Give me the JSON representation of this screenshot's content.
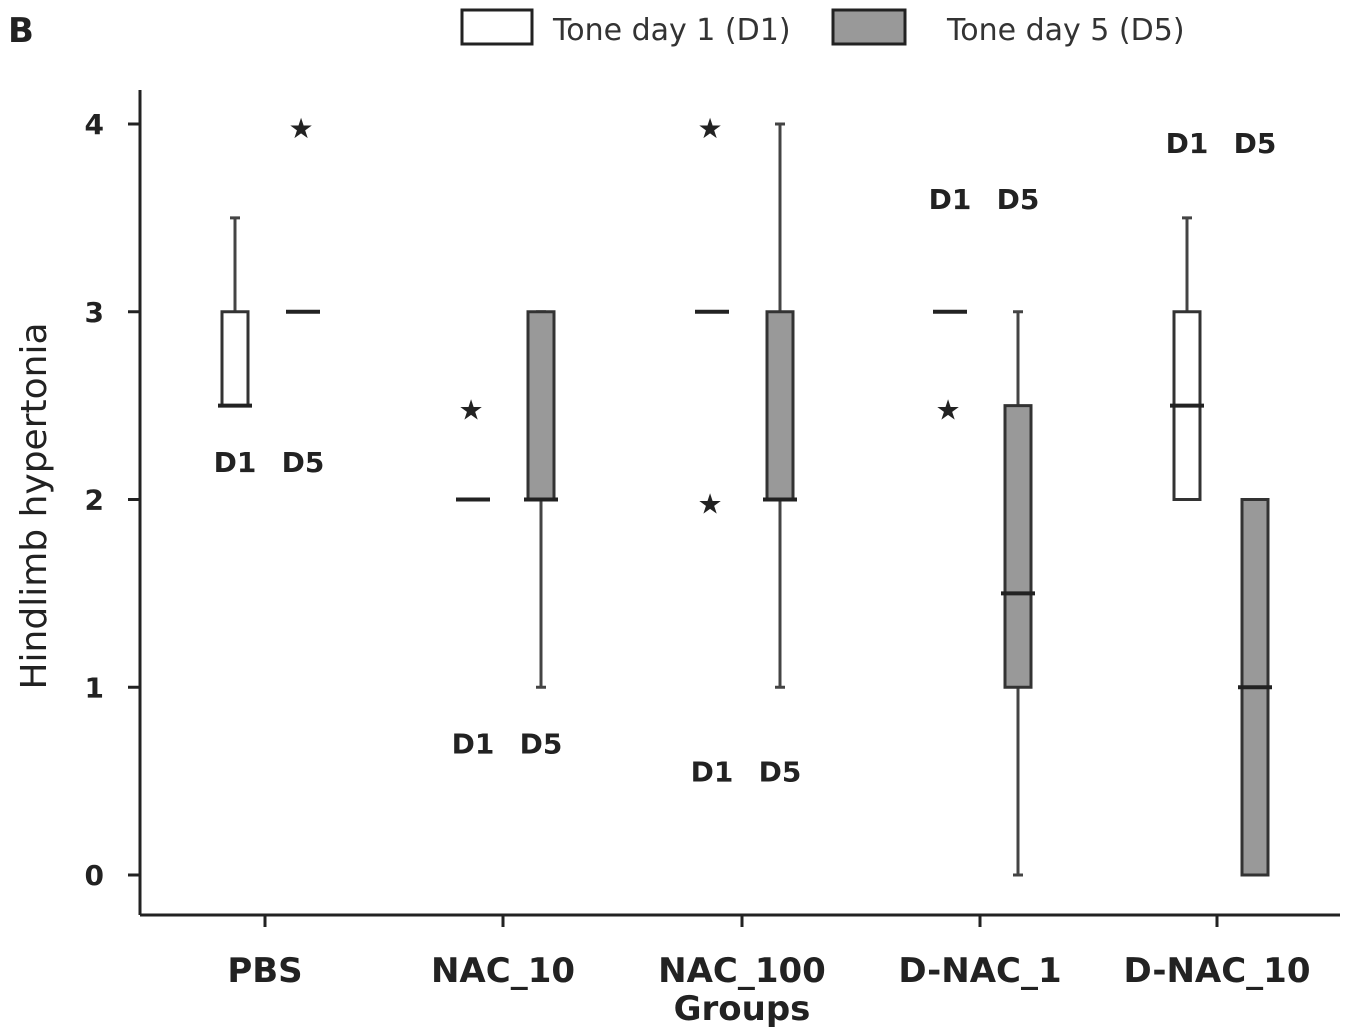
{
  "chart_data": {
    "type": "box",
    "panel_label": "B",
    "xlabel": "Groups",
    "ylabel": "Hindlimb hypertonia",
    "ylim": [
      0,
      4
    ],
    "yticks": [
      0,
      1,
      2,
      3,
      4
    ],
    "grid": false,
    "legend_position": "top",
    "categories": [
      "PBS",
      "NAC_10",
      "NAC_100",
      "D-NAC_1",
      "D-NAC_10"
    ],
    "series": [
      {
        "name": "Tone day 1 (D1)",
        "fill": "#ffffff",
        "boxes": [
          {
            "min": 2.5,
            "q1": 2.5,
            "median": 2.5,
            "q3": 3,
            "max": 3.5,
            "outliers": []
          },
          {
            "min": 2,
            "q1": 2,
            "median": 2,
            "q3": 2,
            "max": 2,
            "outliers": [
              2.5
            ]
          },
          {
            "min": 3,
            "q1": 3,
            "median": 3,
            "q3": 3,
            "max": 3,
            "outliers": [
              4,
              2
            ]
          },
          {
            "min": 3,
            "q1": 3,
            "median": 3,
            "q3": 3,
            "max": 3,
            "outliers": [
              2.5
            ]
          },
          {
            "min": 2,
            "q1": 2,
            "median": 2.5,
            "q3": 3,
            "max": 3.5,
            "outliers": []
          }
        ]
      },
      {
        "name": "Tone day 5 (D5)",
        "fill": "#999999",
        "boxes": [
          {
            "min": 3,
            "q1": 3,
            "median": 3,
            "q3": 3,
            "max": 3,
            "outliers": [
              4
            ]
          },
          {
            "min": 1,
            "q1": 2,
            "median": 2,
            "q3": 3,
            "max": 3,
            "outliers": []
          },
          {
            "min": 1,
            "q1": 2,
            "median": 2,
            "q3": 3,
            "max": 4,
            "outliers": []
          },
          {
            "min": 0,
            "q1": 1,
            "median": 1.5,
            "q3": 2.5,
            "max": 3,
            "outliers": []
          },
          {
            "min": 0,
            "q1": 0,
            "median": 1,
            "q3": 2,
            "max": 2,
            "outliers": []
          }
        ]
      }
    ],
    "annotations": [
      {
        "group": "PBS",
        "labels": [
          "D1",
          "D5"
        ],
        "at_y": 2.2
      },
      {
        "group": "NAC_10",
        "labels": [
          "D1",
          "D5"
        ],
        "at_y": 0.7
      },
      {
        "group": "NAC_100",
        "labels": [
          "D1",
          "D5"
        ],
        "at_y": 0.55
      },
      {
        "group": "D-NAC_1",
        "labels": [
          "D1",
          "D5"
        ],
        "at_y": 3.6
      },
      {
        "group": "D-NAC_10",
        "labels": [
          "D1",
          "D5"
        ],
        "at_y": 3.9
      }
    ]
  }
}
